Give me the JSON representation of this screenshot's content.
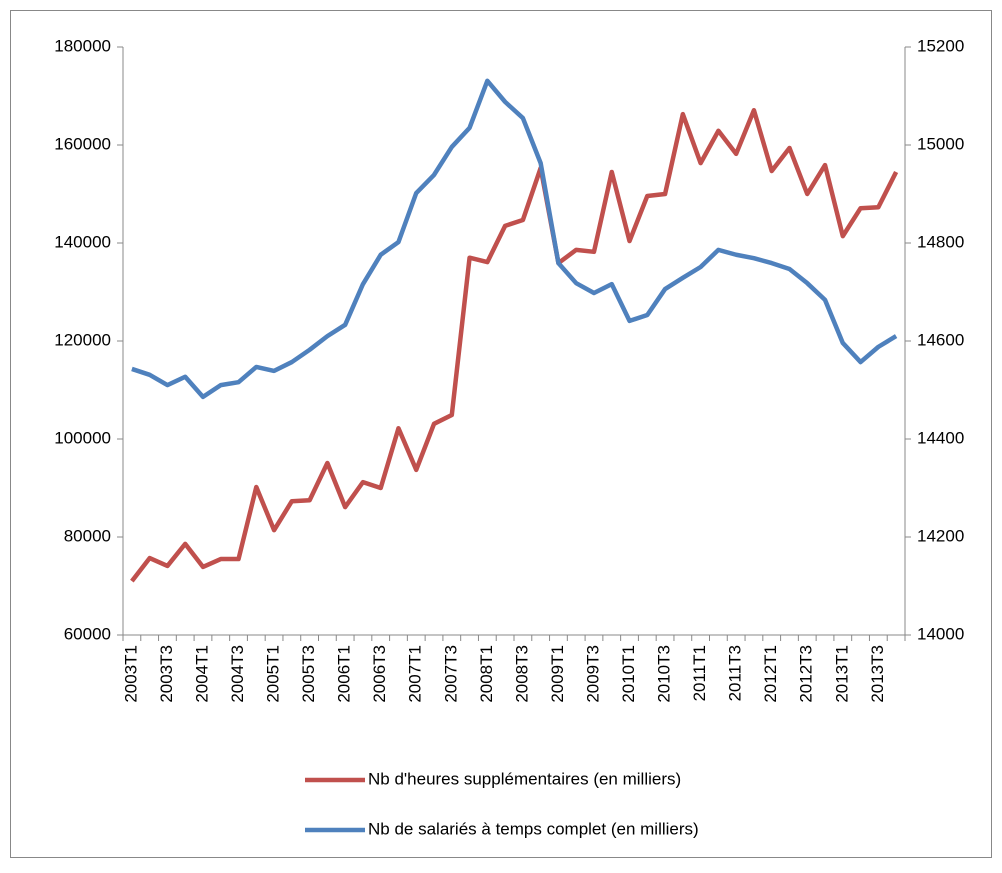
{
  "chart_data": {
    "type": "line",
    "categories": [
      "2003T1",
      null,
      "2003T3",
      null,
      "2004T1",
      null,
      "2004T3",
      null,
      "2005T1",
      null,
      "2005T3",
      null,
      "2006T1",
      null,
      "2006T3",
      null,
      "2007T1",
      null,
      "2007T3",
      null,
      "2008T1",
      null,
      "2008T3",
      null,
      "2009T1",
      null,
      "2009T3",
      null,
      "2010T1",
      null,
      "2010T3",
      null,
      "2011T1",
      null,
      "2011T3",
      null,
      "2012T1",
      null,
      "2012T3",
      null,
      "2013T1",
      null,
      "2013T3",
      null
    ],
    "series": [
      {
        "name": "Nb d'heures supplémentaires (en milliers)",
        "color": "#c0504d",
        "axis": "y",
        "values": [
          71000,
          75700,
          74100,
          78600,
          73900,
          75500,
          75500,
          90200,
          81400,
          87300,
          87500,
          95100,
          86100,
          91200,
          90000,
          102200,
          93700,
          103100,
          104900,
          137000,
          136100,
          143500,
          144700,
          155300,
          135900,
          138600,
          138200,
          154500,
          140400,
          149600,
          150000,
          166300,
          156300,
          162900,
          158200,
          167100,
          154700,
          159400,
          150000,
          155900,
          141400,
          147100,
          147300,
          154500
        ]
      },
      {
        "name": "Nb de salariés à temps complet (en milliers)",
        "color": "#4f81bd",
        "axis": "y2",
        "values": [
          14543,
          14531,
          14510,
          14527,
          14486,
          14510,
          14516,
          14547,
          14539,
          14557,
          14582,
          14610,
          14633,
          14716,
          14776,
          14802,
          14902,
          14939,
          14996,
          15035,
          15131,
          15088,
          15055,
          14963,
          14759,
          14718,
          14698,
          14716,
          14641,
          14653,
          14706,
          14729,
          14751,
          14786,
          14776,
          14769,
          14759,
          14747,
          14718,
          14684,
          14596,
          14557,
          14588,
          14610
        ]
      }
    ],
    "ylim": [
      60000,
      180000
    ],
    "yticks": [
      60000,
      80000,
      100000,
      120000,
      140000,
      160000,
      180000
    ],
    "y2lim": [
      14000,
      15200
    ],
    "y2ticks": [
      14000,
      14200,
      14400,
      14600,
      14800,
      15000,
      15200
    ],
    "legend": "bottom"
  }
}
